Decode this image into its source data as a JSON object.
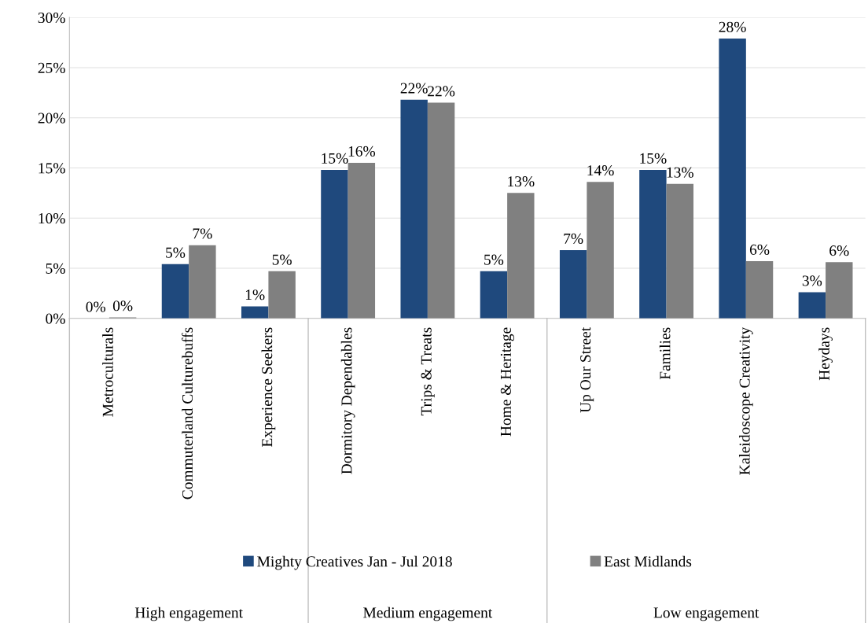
{
  "chart_data": {
    "type": "bar",
    "categories": [
      "Metroculturals",
      "Commuterland Culturebuffs",
      "Experience Seekers",
      "Dormitory Dependables",
      "Trips & Treats",
      "Home & Heritage",
      "Up Our Street",
      "Families",
      "Kaleidoscope Creativity",
      "Heydays"
    ],
    "series": [
      {
        "name": "Mighty Creatives Jan - Jul 2018",
        "color": "#1f497d",
        "values": [
          0,
          5.4,
          1.2,
          14.8,
          21.8,
          4.7,
          6.8,
          14.8,
          27.9,
          2.6
        ],
        "value_labels": [
          "0%",
          "5%",
          "1%",
          "15%",
          "22%",
          "5%",
          "7%",
          "15%",
          "28%",
          "3%"
        ]
      },
      {
        "name": "East Midlands",
        "color": "#808080",
        "values": [
          0.1,
          7.3,
          4.7,
          15.5,
          21.5,
          12.5,
          13.6,
          13.4,
          5.7,
          5.6
        ],
        "value_labels": [
          "0%",
          "7%",
          "5%",
          "16%",
          "22%",
          "13%",
          "14%",
          "13%",
          "6%",
          "6%"
        ]
      }
    ],
    "ylim": [
      0,
      30
    ],
    "yticks": [
      {
        "value": 0,
        "label": "0%"
      },
      {
        "value": 5,
        "label": "5%"
      },
      {
        "value": 10,
        "label": "10%"
      },
      {
        "value": 15,
        "label": "15%"
      },
      {
        "value": 20,
        "label": "20%"
      },
      {
        "value": 25,
        "label": "25%"
      },
      {
        "value": 30,
        "label": "30%"
      }
    ],
    "grid": "y",
    "legend": "bottom",
    "annotations": [
      "High engagement",
      "Medium engagement",
      "Low engagement"
    ]
  }
}
